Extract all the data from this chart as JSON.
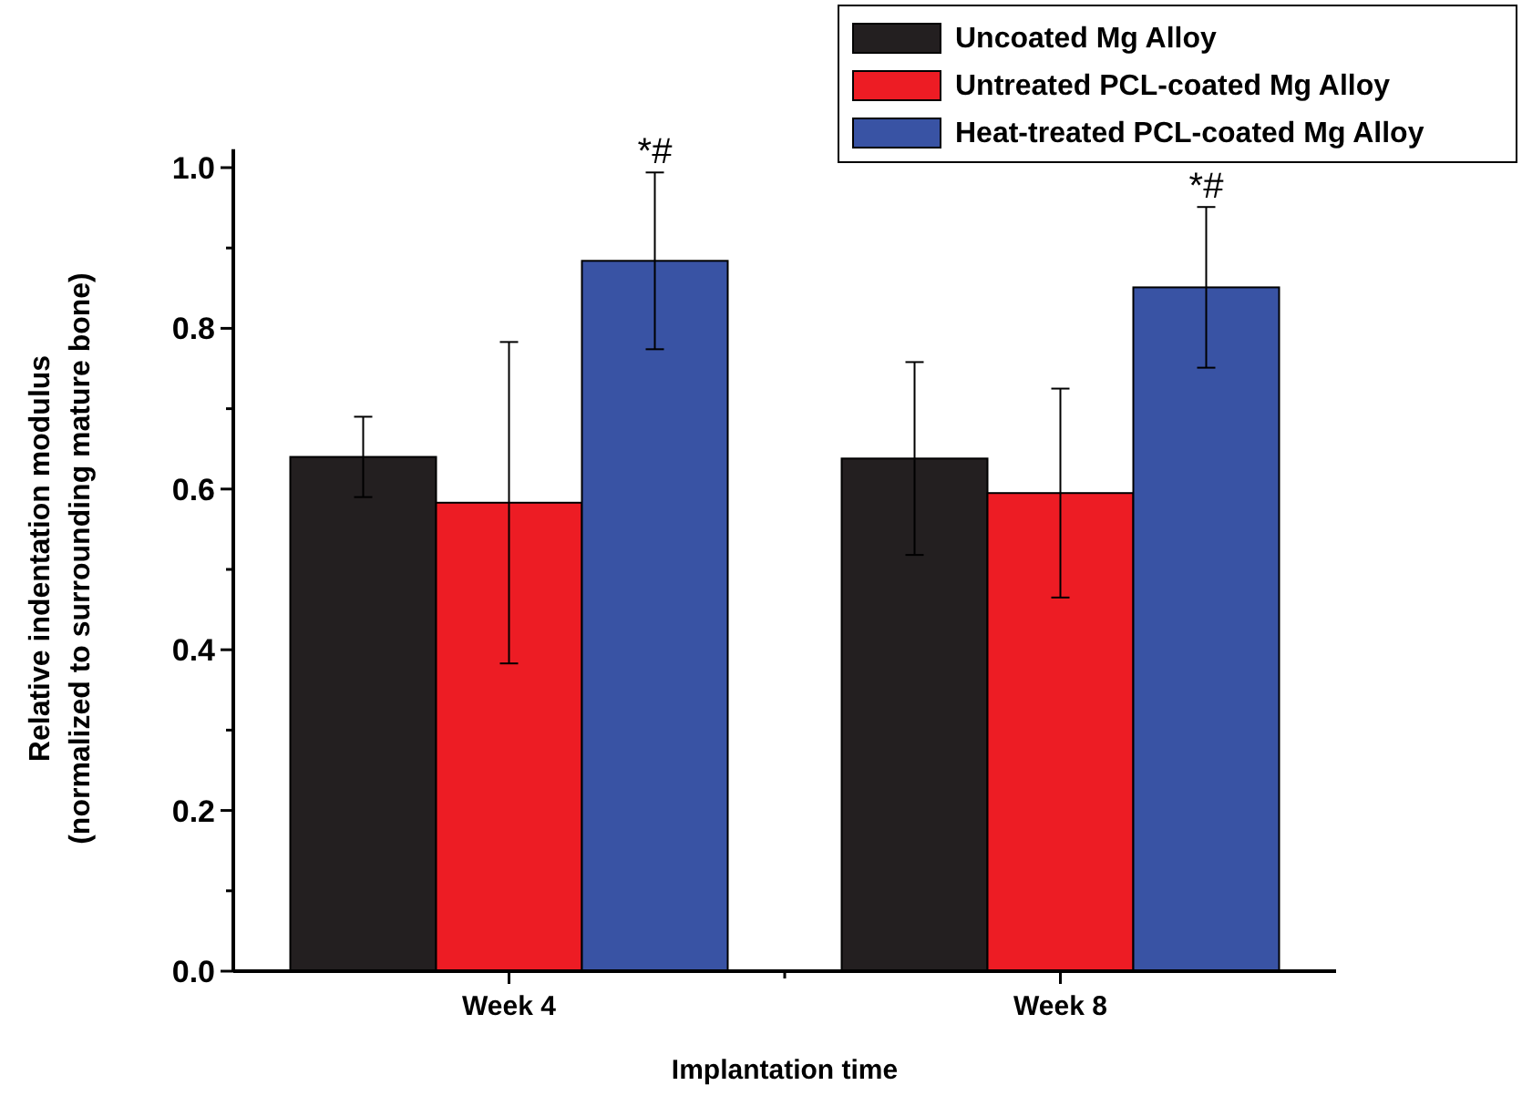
{
  "chart_data": {
    "type": "bar",
    "xlabel": "Implantation time",
    "ylabel": "Relative indentation modulus\n(normalized to surrounding mature bone)",
    "categories": [
      "Week 4",
      "Week 8"
    ],
    "series": [
      {
        "name": "Uncoated Mg Alloy",
        "color": "#231f20",
        "values": [
          0.64,
          0.638
        ],
        "errors": [
          0.05,
          0.12
        ]
      },
      {
        "name": "Untreated PCL-coated Mg Alloy",
        "color": "#ed1c24",
        "values": [
          0.583,
          0.595
        ],
        "errors": [
          0.2,
          0.13
        ]
      },
      {
        "name": "Heat-treated PCL-coated Mg Alloy",
        "color": "#3953a4",
        "values": [
          0.884,
          0.851
        ],
        "errors": [
          0.11,
          0.1
        ]
      }
    ],
    "ylim": [
      0,
      1.023
    ],
    "yticks": [
      {
        "value": 0,
        "label": "0.0"
      },
      0.2,
      0.4,
      0.6,
      0.8,
      {
        "value": 1,
        "label": "1.0"
      }
    ],
    "annotations": [
      "*#",
      "*#"
    ],
    "legend": "top right",
    "grid": false
  }
}
